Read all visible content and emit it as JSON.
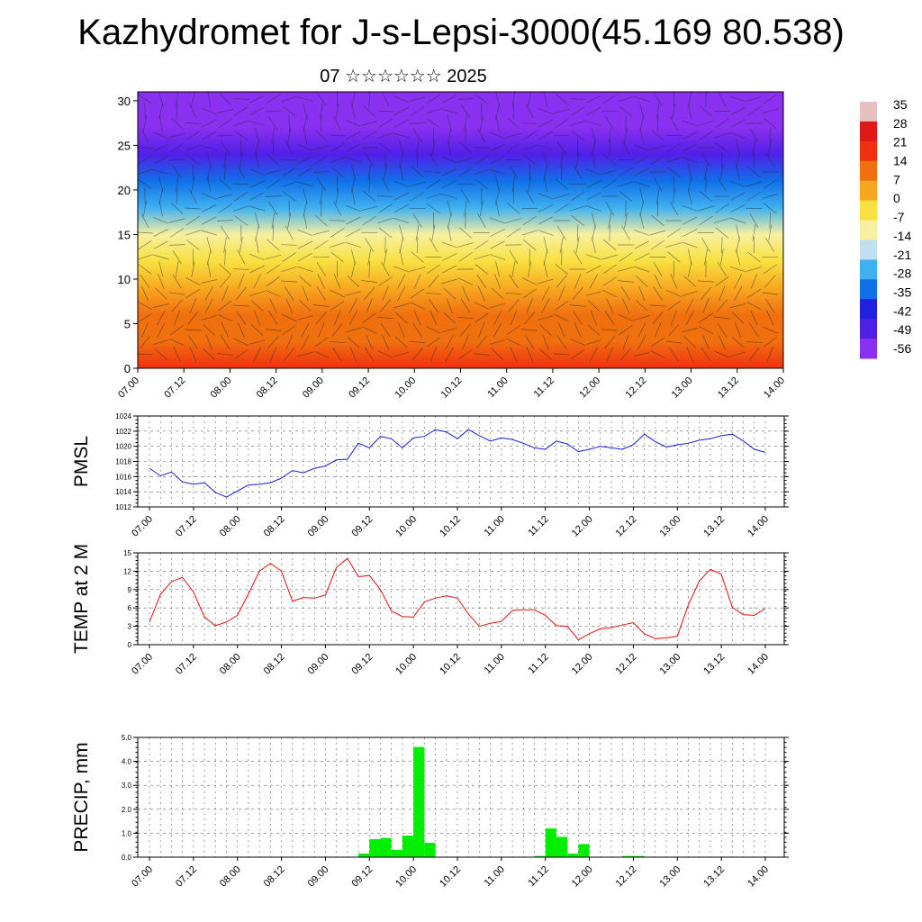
{
  "header": {
    "title": "Kazhydromet for J-s-Lepsi-3000(45.169 80.538)",
    "subtitle": "07 ☆☆☆☆☆☆ 2025"
  },
  "colors": {
    "pmsl_line": "#1a1adc",
    "temp_line": "#e01010",
    "precip_bar": "#00ee00",
    "colorbar_stops": [
      "#e8c0c0",
      "#e01818",
      "#f03010",
      "#f07010",
      "#f8a820",
      "#f8e040",
      "#f8f0a0",
      "#c0e0f0",
      "#40b0f0",
      "#1070e8",
      "#2020e0",
      "#5020e8",
      "#8a30f0"
    ]
  },
  "colorbar": {
    "labels": [
      "35",
      "28",
      "21",
      "14",
      "7",
      "0",
      "-7",
      "-14",
      "-21",
      "-28",
      "-35",
      "-42",
      "-49",
      "-56"
    ]
  },
  "x_tick_labels": [
    "07.00",
    "07.12",
    "08.00",
    "08.12",
    "09.00",
    "09.12",
    "10.00",
    "10.12",
    "11.00",
    "11.12",
    "12.00",
    "12.12",
    "13.00",
    "13.12",
    "14.00"
  ],
  "chart_data": [
    {
      "type": "heatmap",
      "name": "cross-section",
      "title": "",
      "ylim": [
        0,
        31
      ],
      "yticks": [
        "0",
        "5",
        "10",
        "15",
        "20",
        "25",
        "30"
      ],
      "x": [
        "07.00",
        "07.12",
        "08.00",
        "08.12",
        "09.00",
        "09.12",
        "10.00",
        "10.12",
        "11.00",
        "11.12",
        "12.00",
        "12.12",
        "13.00",
        "13.12",
        "14.00"
      ],
      "levels": [
        0,
        3,
        6,
        9,
        12,
        15,
        18,
        21,
        24,
        27,
        30
      ],
      "temperature_by_level": [
        22,
        14,
        8,
        2,
        -7,
        -14,
        -25,
        -38,
        -52,
        -58,
        -60
      ],
      "wind_barbs": true
    },
    {
      "type": "line",
      "name": "pmsl",
      "ylabel": "PMSL",
      "ylim": [
        1012,
        1024
      ],
      "yticks": [
        "1012",
        "1014",
        "1016",
        "1018",
        "1020",
        "1022",
        "1024"
      ],
      "x": [
        0,
        3,
        6,
        9,
        12,
        15,
        18,
        21,
        24,
        27,
        30,
        33,
        36,
        39,
        42,
        45,
        48,
        51,
        54,
        57,
        60,
        63,
        66,
        69,
        72,
        75,
        78,
        81,
        84,
        87,
        90,
        93,
        96,
        99,
        102,
        105,
        108,
        111,
        114,
        117,
        120,
        123,
        126,
        129,
        132,
        135,
        138,
        141,
        144,
        147,
        150,
        153,
        156,
        159,
        162,
        165,
        168
      ],
      "values": [
        1017.1,
        1016.1,
        1016.6,
        1015.3,
        1015.0,
        1015.2,
        1013.9,
        1013.3,
        1014.1,
        1014.9,
        1015.0,
        1015.2,
        1015.8,
        1016.8,
        1016.5,
        1017.1,
        1017.4,
        1018.2,
        1018.3,
        1020.4,
        1019.8,
        1021.3,
        1021.0,
        1019.8,
        1021.1,
        1021.3,
        1022.2,
        1021.9,
        1021.0,
        1022.2,
        1021.4,
        1020.7,
        1021.1,
        1020.9,
        1020.4,
        1019.8,
        1019.6,
        1020.7,
        1020.3,
        1019.3,
        1019.6,
        1020.0,
        1019.8,
        1019.6,
        1020.2,
        1021.6,
        1020.6,
        1019.9,
        1020.2,
        1020.4,
        1020.8,
        1021.0,
        1021.4,
        1021.6,
        1020.7,
        1019.6,
        1019.2
      ]
    },
    {
      "type": "line",
      "name": "temp-2m",
      "ylabel": "TEMP at 2 M",
      "ylim": [
        0,
        15
      ],
      "yticks": [
        "0",
        "3",
        "6",
        "9",
        "12",
        "15"
      ],
      "x": [
        0,
        3,
        6,
        9,
        12,
        15,
        18,
        21,
        24,
        27,
        30,
        33,
        36,
        39,
        42,
        45,
        48,
        51,
        54,
        57,
        60,
        63,
        66,
        69,
        72,
        75,
        78,
        81,
        84,
        87,
        90,
        93,
        96,
        99,
        102,
        105,
        108,
        111,
        114,
        117,
        120,
        123,
        126,
        129,
        132,
        135,
        138,
        141,
        144,
        147,
        150,
        153,
        156,
        159,
        162,
        165,
        168
      ],
      "values": [
        3.7,
        8.2,
        10.3,
        11.0,
        8.6,
        4.5,
        3.1,
        3.7,
        4.8,
        8.3,
        12.0,
        13.3,
        12.0,
        7.1,
        7.7,
        7.6,
        8.1,
        12.6,
        14.1,
        11.1,
        11.3,
        9.0,
        5.5,
        4.6,
        4.5,
        7.0,
        7.6,
        8.0,
        7.6,
        5.0,
        3.0,
        3.5,
        3.8,
        5.6,
        5.7,
        5.7,
        4.8,
        3.1,
        3.0,
        0.8,
        1.8,
        2.6,
        2.8,
        3.2,
        3.6,
        1.8,
        1.0,
        1.1,
        1.4,
        6.5,
        10.4,
        12.3,
        11.5,
        6.1,
        4.9,
        4.8,
        5.9
      ]
    },
    {
      "type": "bar",
      "name": "precip",
      "ylabel": "PRECIP, mm",
      "ylim": [
        0,
        5
      ],
      "yticks": [
        "0.0",
        "1.0",
        "2.0",
        "3.0",
        "4.0",
        "5.0"
      ],
      "x": [
        0,
        3,
        6,
        9,
        12,
        15,
        18,
        21,
        24,
        27,
        30,
        33,
        36,
        39,
        42,
        45,
        48,
        51,
        54,
        57,
        60,
        63,
        66,
        69,
        72,
        75,
        78,
        81,
        84,
        87,
        90,
        93,
        96,
        99,
        102,
        105,
        108,
        111,
        114,
        117,
        120,
        123,
        126,
        129,
        132,
        135,
        138,
        141,
        144,
        147,
        150,
        153,
        156,
        159,
        162,
        165
      ],
      "values": [
        0,
        0,
        0,
        0,
        0,
        0,
        0,
        0,
        0,
        0,
        0,
        0,
        0,
        0,
        0,
        0,
        0,
        0,
        0,
        0.15,
        0.75,
        0.8,
        0.3,
        0.9,
        4.6,
        0.6,
        0,
        0,
        0,
        0,
        0,
        0,
        0,
        0,
        0,
        0.05,
        1.2,
        0.85,
        0.15,
        0.55,
        0,
        0,
        0,
        0.05,
        0.05,
        0,
        0,
        0,
        0,
        0,
        0,
        0,
        0,
        0,
        0,
        0
      ]
    }
  ]
}
